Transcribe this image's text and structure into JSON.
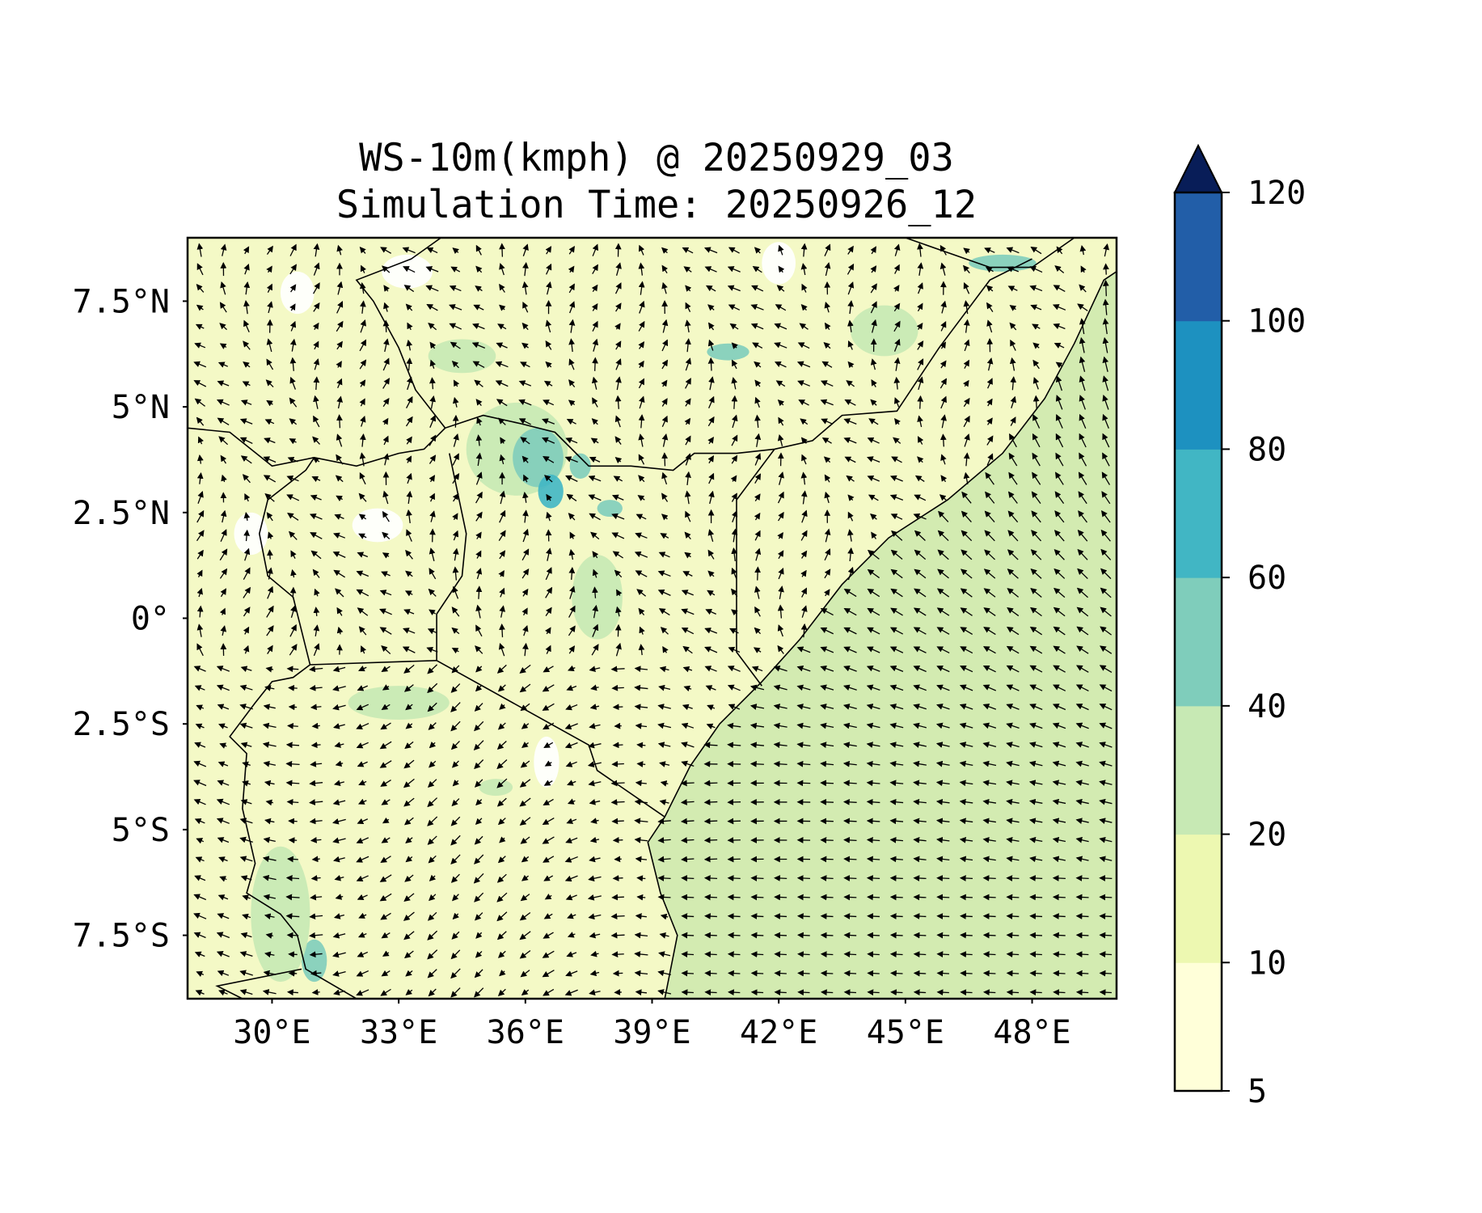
{
  "title": {
    "line1": "WS-10m(kmph) @ 20250929_03",
    "line2": "Simulation Time: 20250926_12"
  },
  "map": {
    "lon_range": [
      28,
      50
    ],
    "lat_range": [
      -9,
      9
    ],
    "lon_ticks": [
      {
        "value": 30,
        "label": "30°E"
      },
      {
        "value": 33,
        "label": "33°E"
      },
      {
        "value": 36,
        "label": "36°E"
      },
      {
        "value": 39,
        "label": "39°E"
      },
      {
        "value": 42,
        "label": "42°E"
      },
      {
        "value": 45,
        "label": "45°E"
      },
      {
        "value": 48,
        "label": "48°E"
      }
    ],
    "lat_ticks": [
      {
        "value": 7.5,
        "label": "7.5°N"
      },
      {
        "value": 5,
        "label": "5°N"
      },
      {
        "value": 2.5,
        "label": "2.5°N"
      },
      {
        "value": 0,
        "label": "0°"
      },
      {
        "value": -2.5,
        "label": "2.5°S"
      },
      {
        "value": -5,
        "label": "5°S"
      },
      {
        "value": -7.5,
        "label": "7.5°S"
      }
    ],
    "field": "wind speed 10m",
    "vectors": "wind direction arrows",
    "land_color": "#f4f9c6",
    "ocean_color": "#d3ebb1",
    "calm_color": "#ffffff"
  },
  "colorbar": {
    "levels": [
      5,
      10,
      20,
      40,
      60,
      80,
      100,
      120
    ],
    "tick_labels": [
      "5",
      "10",
      "20",
      "40",
      "60",
      "80",
      "100",
      "120"
    ],
    "colors": [
      "#ffffd9",
      "#edf8b1",
      "#c7e9b4",
      "#7fcdbb",
      "#41b6c4",
      "#1d91c0",
      "#225ea8",
      "#0c2c84"
    ],
    "extend_color": "#081d58",
    "extend": "max"
  }
}
